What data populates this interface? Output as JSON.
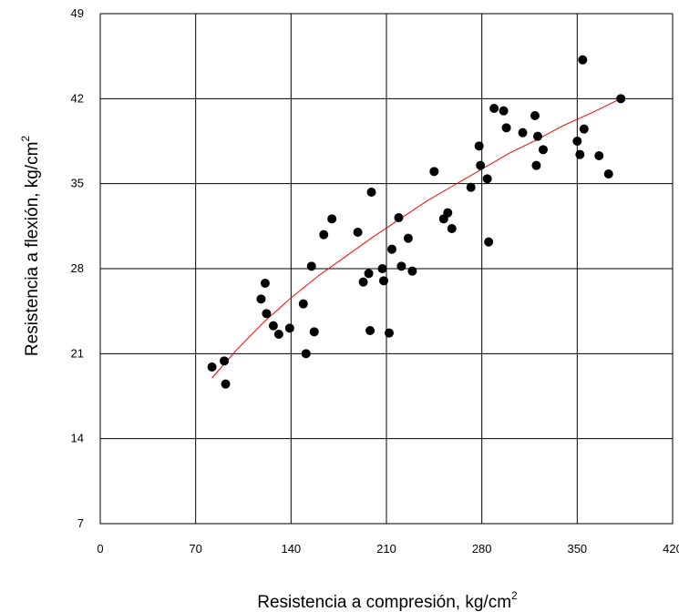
{
  "chart_data": {
    "type": "scatter",
    "title": "",
    "xlabel": "Resistencia a compresión, kg/cm",
    "xlabel_superscript": "2",
    "ylabel": "Resistencia a flexión, kg/cm",
    "ylabel_superscript": "2",
    "xlim": [
      0,
      420
    ],
    "ylim": [
      7,
      49
    ],
    "x_ticks": [
      "0",
      "70",
      "140",
      "210",
      "280",
      "350",
      "420"
    ],
    "y_ticks": [
      "7",
      "14",
      "21",
      "28",
      "35",
      "42",
      "49"
    ],
    "grid": true,
    "legend": "none",
    "marker_color": "#000000",
    "trend_color": "#ff0000",
    "series": [
      {
        "points": [
          [
            82,
            19.9
          ],
          [
            91,
            20.4
          ],
          [
            92,
            18.5
          ],
          [
            118,
            25.5
          ],
          [
            121,
            26.8
          ],
          [
            122,
            24.3
          ],
          [
            127,
            23.3
          ],
          [
            131,
            22.6
          ],
          [
            139,
            23.1
          ],
          [
            149,
            25.1
          ],
          [
            151,
            21.0
          ],
          [
            155,
            28.2
          ],
          [
            157,
            22.8
          ],
          [
            164,
            30.8
          ],
          [
            170,
            32.1
          ],
          [
            189,
            31.0
          ],
          [
            193,
            26.9
          ],
          [
            197,
            27.6
          ],
          [
            198,
            22.9
          ],
          [
            199,
            34.3
          ],
          [
            207,
            28.0
          ],
          [
            208,
            27.0
          ],
          [
            212,
            22.7
          ],
          [
            214,
            29.6
          ],
          [
            219,
            32.2
          ],
          [
            221,
            28.2
          ],
          [
            226,
            30.5
          ],
          [
            229,
            27.8
          ],
          [
            245,
            36.0
          ],
          [
            252,
            32.1
          ],
          [
            255,
            32.6
          ],
          [
            258,
            31.3
          ],
          [
            272,
            34.7
          ],
          [
            278,
            38.1
          ],
          [
            279,
            36.5
          ],
          [
            284,
            35.4
          ],
          [
            285,
            30.2
          ],
          [
            289,
            41.2
          ],
          [
            296,
            41.0
          ],
          [
            298,
            39.6
          ],
          [
            310,
            39.2
          ],
          [
            319,
            40.6
          ],
          [
            320,
            36.5
          ],
          [
            321,
            38.9
          ],
          [
            325,
            37.8
          ],
          [
            350,
            38.5
          ],
          [
            352,
            37.4
          ],
          [
            354,
            45.2
          ],
          [
            355,
            39.5
          ],
          [
            366,
            37.3
          ],
          [
            373,
            35.8
          ],
          [
            382,
            42.0
          ]
        ]
      }
    ],
    "trend_line": {
      "x": [
        82,
        100,
        120,
        140,
        160,
        180,
        200,
        220,
        240,
        260,
        280,
        300,
        320,
        340,
        360,
        380
      ],
      "y": [
        19.0,
        21.3,
        23.6,
        25.6,
        27.4,
        29.0,
        30.6,
        32.1,
        33.6,
        34.9,
        36.2,
        37.5,
        38.6,
        39.8,
        40.8,
        41.9
      ]
    }
  }
}
